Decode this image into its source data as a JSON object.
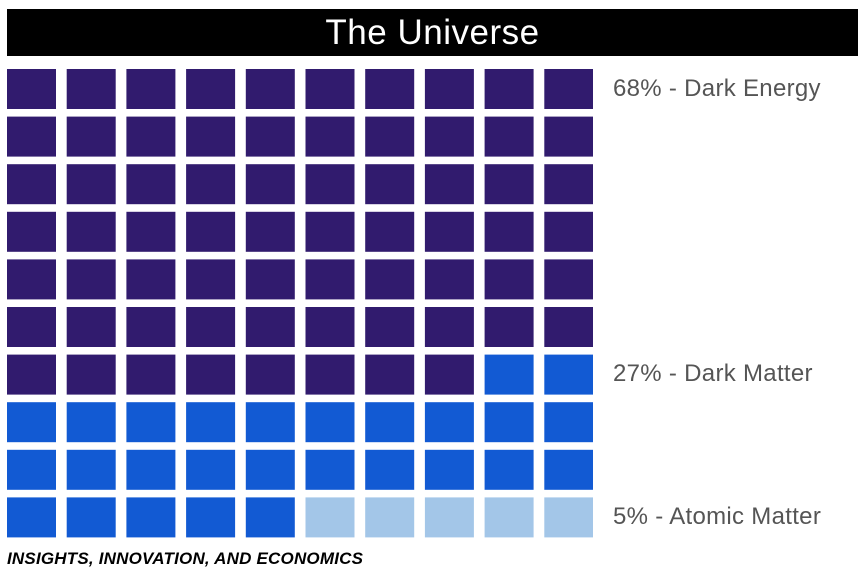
{
  "title": "The Universe",
  "footer": "INSIGHTS, INNOVATION, AND ECONOMICS",
  "chart_data": {
    "type": "waffle",
    "title": "The Universe",
    "grid": {
      "rows": 10,
      "cols": 10,
      "total": 100
    },
    "series": [
      {
        "name": "Dark Energy",
        "value": 68,
        "label": "68% - Dark Energy",
        "color": "#311B6E"
      },
      {
        "name": "Dark Matter",
        "value": 27,
        "label": "27% - Dark Matter",
        "color": "#125AD3"
      },
      {
        "name": "Atomic Matter",
        "value": 5,
        "label": "5% - Atomic Matter",
        "color": "#A3C6E8"
      }
    ]
  }
}
